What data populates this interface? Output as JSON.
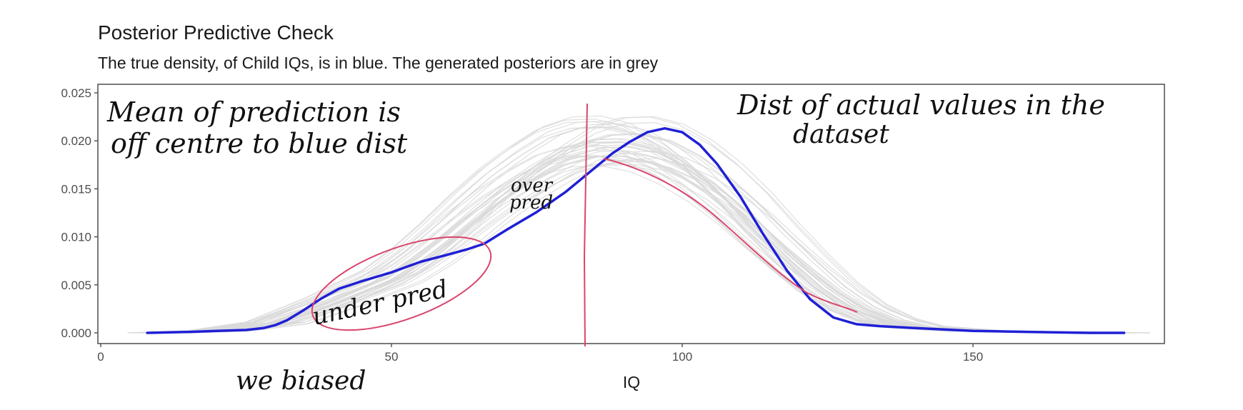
{
  "chart_data": {
    "type": "area",
    "title": "Posterior Predictive Check",
    "subtitle": "The true density, of Child IQs, is in blue. The generated posteriors are in grey",
    "xlabel": "IQ",
    "ylabel": "",
    "xlim": [
      0,
      185
    ],
    "ylim": [
      0,
      0.025
    ],
    "x_ticks": [
      0,
      50,
      100,
      150
    ],
    "y_ticks": [
      "0.000",
      "0.005",
      "0.010",
      "0.015",
      "0.020",
      "0.025"
    ],
    "grid": false,
    "series": [
      {
        "role": "observed",
        "color": "#1f1fd6",
        "x": [
          8,
          15,
          20,
          25,
          28,
          30,
          32,
          35,
          38,
          41,
          45,
          50,
          55,
          60,
          63,
          66,
          70,
          75,
          80,
          85,
          88,
          91,
          94,
          97,
          100,
          103,
          106,
          110,
          114,
          118,
          122,
          126,
          130,
          134,
          140,
          150,
          160,
          170,
          176
        ],
        "y": [
          0.0,
          0.0001,
          0.0002,
          0.0003,
          0.0005,
          0.0008,
          0.0013,
          0.0024,
          0.0036,
          0.0046,
          0.0054,
          0.0063,
          0.0074,
          0.0082,
          0.0087,
          0.0093,
          0.0108,
          0.0126,
          0.0147,
          0.0172,
          0.0187,
          0.0199,
          0.0209,
          0.0213,
          0.0209,
          0.0196,
          0.0176,
          0.0142,
          0.0102,
          0.0065,
          0.0035,
          0.0016,
          0.0009,
          0.0007,
          0.0005,
          0.0002,
          0.0001,
          0.0,
          0.0
        ]
      },
      {
        "role": "posterior-draws",
        "color": "#d9d9d9",
        "count": 40,
        "x": [
          10,
          20,
          30,
          40,
          50,
          55,
          60,
          65,
          70,
          75,
          80,
          85,
          90,
          95,
          100,
          105,
          110,
          115,
          120,
          125,
          130,
          135,
          140,
          150,
          160,
          175
        ],
        "y": [
          0.0,
          0.0002,
          0.001,
          0.0032,
          0.0058,
          0.0078,
          0.0102,
          0.0128,
          0.0152,
          0.0172,
          0.0189,
          0.0198,
          0.0199,
          0.0192,
          0.0177,
          0.0156,
          0.013,
          0.01,
          0.0072,
          0.0046,
          0.0026,
          0.0013,
          0.0006,
          0.0002,
          0.0001,
          0.0
        ]
      }
    ],
    "annotations": [
      {
        "id": "mean",
        "line1": "Mean of prediction is",
        "line2": "off centre to blue dist"
      },
      {
        "id": "dist",
        "line1": "Dist of actual values in the",
        "line2": "dataset"
      },
      {
        "id": "over",
        "line1": "over",
        "line2": "pred"
      },
      {
        "id": "under",
        "line1": "under pred"
      },
      {
        "id": "biased",
        "line1": "we biased"
      }
    ]
  },
  "colors": {
    "observed": "#1f1fd6",
    "posterior": "#d9d9d9",
    "annotation_ink": "#111111",
    "annotation_pen": "#d9456b"
  }
}
